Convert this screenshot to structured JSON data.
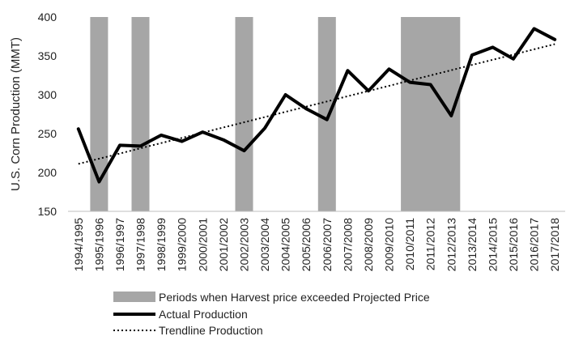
{
  "chart_data": {
    "type": "line",
    "title": "",
    "ylabel": "U.S. Corn Production (MMT)",
    "xlabel": "",
    "ylim": [
      150,
      400
    ],
    "yticks": [
      150,
      200,
      250,
      300,
      350,
      400
    ],
    "grid": false,
    "legend_position": "bottom",
    "categories": [
      "1994/1995",
      "1995/1996",
      "1996/1997",
      "1997/1998",
      "1998/1999",
      "1999/2000",
      "2000/2001",
      "2001/2002",
      "2002/2003",
      "2003/2004",
      "2004/2005",
      "2005/2006",
      "2006/2007",
      "2007/2008",
      "2008/2009",
      "2009/2010",
      "2010/2011",
      "2011/2012",
      "2012/2013",
      "2013/2014",
      "2014/2015",
      "2015/2016",
      "2016/2017",
      "2017/2018"
    ],
    "series": [
      {
        "name": "Actual Production",
        "style": "solid",
        "color": "#000000",
        "values": [
          256,
          188,
          235,
          234,
          248,
          240,
          252,
          242,
          228,
          257,
          300,
          282,
          268,
          331,
          305,
          333,
          316,
          313,
          273,
          351,
          361,
          346,
          385,
          371
        ]
      },
      {
        "name": "Trendline Production",
        "style": "dotted",
        "color": "#000000",
        "values": [
          211,
          217.7,
          224.4,
          231.1,
          237.8,
          244.5,
          251.2,
          257.9,
          264.6,
          271.3,
          278,
          284.7,
          291.4,
          298.1,
          304.8,
          311.5,
          318.2,
          324.9,
          331.6,
          338.3,
          345,
          351.7,
          358.4,
          365.1
        ]
      }
    ],
    "shaded_periods": {
      "name": "Periods when Harvest price exceeded Projected Price",
      "color": "#a6a6a6",
      "ranges": [
        [
          "1995/1996",
          "1995/1996"
        ],
        [
          "1997/1998",
          "1997/1998"
        ],
        [
          "2002/2003",
          "2002/2003"
        ],
        [
          "2006/2007",
          "2006/2007"
        ],
        [
          "2010/2011",
          "2012/2013"
        ]
      ]
    },
    "legend": [
      {
        "label": "Periods when Harvest price exceeded Projected Price",
        "kind": "shade"
      },
      {
        "label": "Actual Production",
        "kind": "solid"
      },
      {
        "label": "Trendline Production",
        "kind": "dotted"
      }
    ]
  }
}
